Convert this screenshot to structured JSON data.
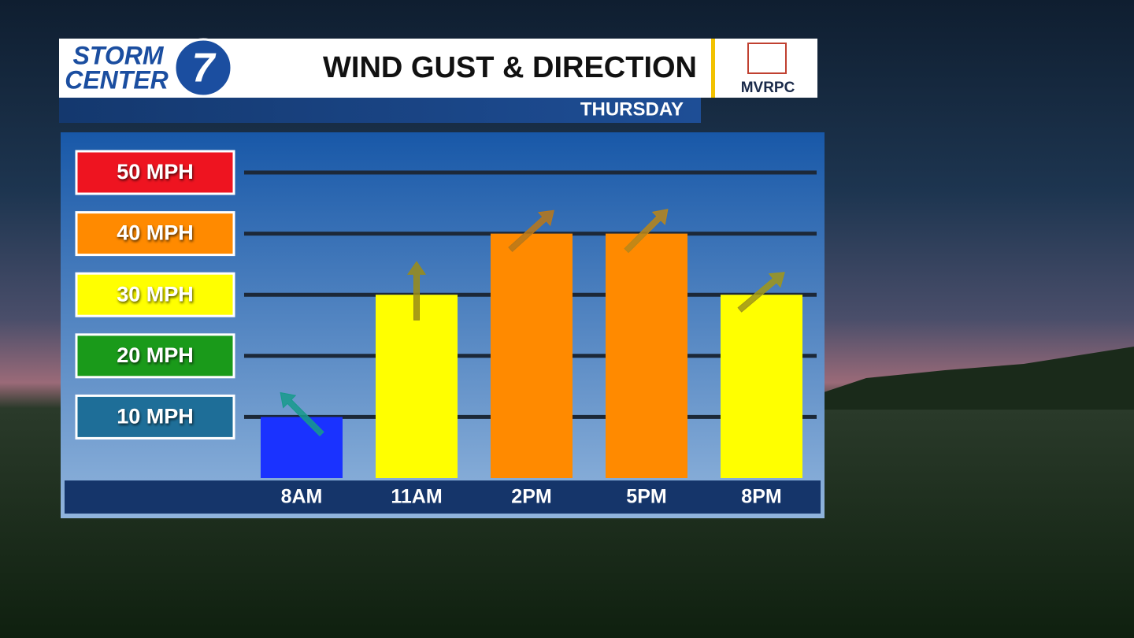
{
  "chart_data": {
    "type": "bar",
    "title": "WIND GUST & DIRECTION",
    "subtitle": "THURSDAY",
    "logo": {
      "line1": "STORM",
      "line2": "CENTER",
      "number": "7"
    },
    "sponsor": "MVRPC",
    "categories": [
      "8AM",
      "11AM",
      "2PM",
      "5PM",
      "8PM"
    ],
    "values": [
      10,
      30,
      40,
      40,
      30
    ],
    "colors": [
      "#1a32ff",
      "#ffff00",
      "#ff8a00",
      "#ff8a00",
      "#ffff00"
    ],
    "wind_direction_deg": [
      315,
      0,
      48,
      45,
      50
    ],
    "arrow_colors": [
      "#179a8c",
      "#9a8c18",
      "#b8781a",
      "#b8861a",
      "#a0961a"
    ],
    "ylim": [
      0,
      50
    ],
    "yticks": [
      {
        "value": 10,
        "label": "10 MPH"
      },
      {
        "value": 20,
        "label": "20 MPH"
      },
      {
        "value": 30,
        "label": "30 MPH"
      },
      {
        "value": 40,
        "label": "40 MPH"
      },
      {
        "value": 50,
        "label": "50 MPH"
      }
    ],
    "ytick_colors": [
      "#1e6e98",
      "#1a9a1a",
      "#ffff00",
      "#ff8a00",
      "#ee1420"
    ],
    "grid": true
  }
}
